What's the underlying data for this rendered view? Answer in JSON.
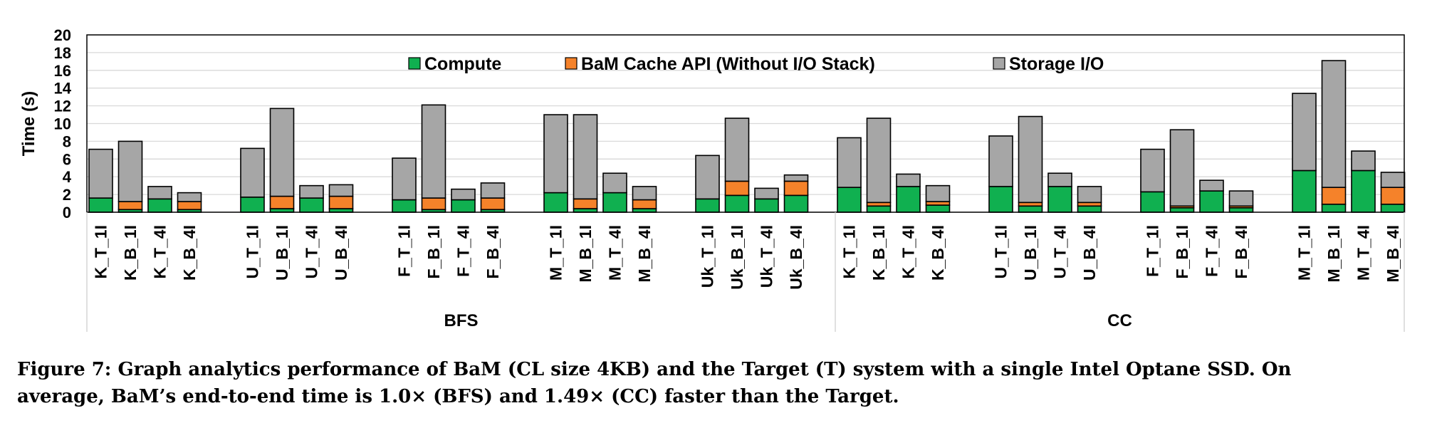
{
  "chart_data": {
    "type": "bar",
    "stacked": true,
    "ylabel": "Time (s)",
    "ylim": [
      0,
      20
    ],
    "yticks": [
      0,
      2,
      4,
      6,
      8,
      10,
      12,
      14,
      16,
      18,
      20
    ],
    "grid": true,
    "legend_position": "top-center",
    "groups": [
      {
        "name": "BFS",
        "clusters": [
          {
            "categories": [
              "K_T_1I",
              "K_B_1I",
              "K_T_4I",
              "K_B_4I"
            ]
          },
          {
            "categories": [
              "U_T_1I",
              "U_B_1I",
              "U_T_4I",
              "U_B_4I"
            ]
          },
          {
            "categories": [
              "F_T_1I",
              "F_B_1I",
              "F_T_4I",
              "F_B_4I"
            ]
          },
          {
            "categories": [
              "M_T_1I",
              "M_B_1I",
              "M_T_4I",
              "M_B_4I"
            ]
          },
          {
            "categories": [
              "Uk_T_1I",
              "Uk_B_1I",
              "Uk_T_4I",
              "Uk_B_4I"
            ]
          }
        ]
      },
      {
        "name": "CC",
        "clusters": [
          {
            "categories": [
              "K_T_1I",
              "K_B_1I",
              "K_T_4I",
              "K_B_4I"
            ]
          },
          {
            "categories": [
              "U_T_1I",
              "U_B_1I",
              "U_T_4I",
              "U_B_4I"
            ]
          },
          {
            "categories": [
              "F_T_1I",
              "F_B_1I",
              "F_T_4I",
              "F_B_4I"
            ]
          },
          {
            "categories": [
              "M_T_1I",
              "M_B_1I",
              "M_T_4I",
              "M_B_4I"
            ]
          }
        ]
      }
    ],
    "series": [
      {
        "name": "Compute",
        "color": "#10b050",
        "values": [
          1.6,
          0.3,
          1.5,
          0.3,
          1.7,
          0.4,
          1.6,
          0.4,
          1.4,
          0.3,
          1.4,
          0.3,
          2.2,
          0.4,
          2.2,
          0.4,
          1.5,
          1.9,
          1.5,
          1.9,
          2.8,
          0.7,
          2.9,
          0.8,
          2.9,
          0.7,
          2.9,
          0.7,
          2.3,
          0.5,
          2.4,
          0.5,
          4.7,
          0.9,
          4.7,
          0.9
        ]
      },
      {
        "name": "BaM Cache API (Without I/O Stack)",
        "color": "#f5822a",
        "values": [
          0.0,
          0.9,
          0.0,
          0.9,
          0.0,
          1.4,
          0.0,
          1.4,
          0.0,
          1.3,
          0.0,
          1.3,
          0.0,
          1.1,
          0.0,
          1.0,
          0.0,
          1.6,
          0.0,
          1.6,
          0.0,
          0.4,
          0.0,
          0.4,
          0.0,
          0.4,
          0.0,
          0.4,
          0.0,
          0.2,
          0.0,
          0.2,
          0.0,
          1.9,
          0.0,
          1.9
        ]
      },
      {
        "name": "Storage I/O",
        "color": "#a6a6a6",
        "values": [
          5.5,
          6.8,
          1.4,
          1.0,
          5.5,
          9.9,
          1.4,
          1.3,
          4.7,
          10.5,
          1.2,
          1.7,
          8.8,
          9.5,
          2.2,
          1.5,
          4.9,
          7.1,
          1.2,
          0.7,
          5.6,
          9.5,
          1.4,
          1.8,
          5.7,
          9.7,
          1.5,
          1.8,
          4.8,
          8.6,
          1.2,
          1.7,
          8.7,
          14.3,
          2.2,
          1.7
        ]
      }
    ]
  },
  "caption": {
    "line1": "Figure 7: Graph analytics performance of BaM (CL size 4KB) and the Target (T) system with a single Intel Optane SSD. On",
    "line2": "average, BaM’s end-to-end time is 1.0× (BFS) and 1.49× (CC) faster than the Target."
  }
}
